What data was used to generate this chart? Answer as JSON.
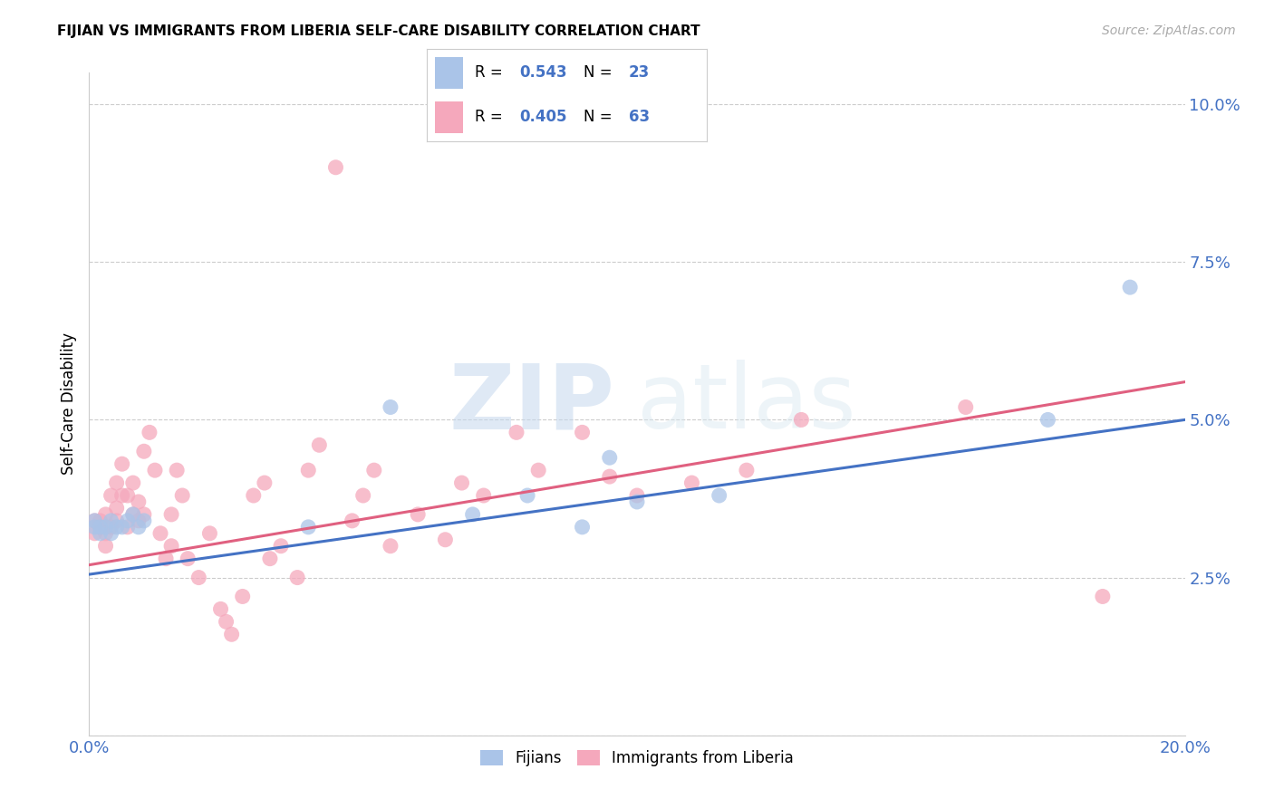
{
  "title": "FIJIAN VS IMMIGRANTS FROM LIBERIA SELF-CARE DISABILITY CORRELATION CHART",
  "source": "Source: ZipAtlas.com",
  "ylabel_label": "Self-Care Disability",
  "xlim": [
    0.0,
    0.2
  ],
  "ylim": [
    0.0,
    0.105
  ],
  "xticks": [
    0.0,
    0.05,
    0.1,
    0.15,
    0.2
  ],
  "yticks": [
    0.0,
    0.025,
    0.05,
    0.075,
    0.1
  ],
  "ytick_labels": [
    "",
    "2.5%",
    "5.0%",
    "7.5%",
    "10.0%"
  ],
  "xtick_labels": [
    "0.0%",
    "",
    "",
    "",
    "20.0%"
  ],
  "watermark_zip": "ZIP",
  "watermark_atlas": "atlas",
  "fijian_R": "0.543",
  "fijian_N": "23",
  "liberia_R": "0.405",
  "liberia_N": "63",
  "fijian_color": "#aac4e8",
  "liberia_color": "#f5a8bc",
  "fijian_line_color": "#4472c4",
  "liberia_line_color": "#e06080",
  "legend_label_1": "Fijians",
  "legend_label_2": "Immigrants from Liberia",
  "fijian_x": [
    0.001,
    0.001,
    0.002,
    0.002,
    0.003,
    0.004,
    0.004,
    0.005,
    0.006,
    0.007,
    0.008,
    0.009,
    0.01,
    0.04,
    0.055,
    0.07,
    0.08,
    0.09,
    0.095,
    0.1,
    0.115,
    0.175,
    0.19
  ],
  "fijian_y": [
    0.033,
    0.034,
    0.032,
    0.033,
    0.033,
    0.032,
    0.034,
    0.033,
    0.033,
    0.034,
    0.035,
    0.033,
    0.034,
    0.033,
    0.052,
    0.035,
    0.038,
    0.033,
    0.044,
    0.037,
    0.038,
    0.05,
    0.071
  ],
  "liberia_x": [
    0.001,
    0.001,
    0.002,
    0.002,
    0.003,
    0.003,
    0.003,
    0.004,
    0.004,
    0.005,
    0.005,
    0.005,
    0.006,
    0.006,
    0.007,
    0.007,
    0.008,
    0.008,
    0.009,
    0.009,
    0.01,
    0.01,
    0.011,
    0.012,
    0.013,
    0.014,
    0.015,
    0.015,
    0.016,
    0.017,
    0.018,
    0.02,
    0.022,
    0.024,
    0.025,
    0.026,
    0.028,
    0.03,
    0.032,
    0.033,
    0.035,
    0.038,
    0.04,
    0.042,
    0.045,
    0.048,
    0.05,
    0.052,
    0.055,
    0.06,
    0.065,
    0.068,
    0.072,
    0.078,
    0.082,
    0.09,
    0.095,
    0.1,
    0.11,
    0.12,
    0.13,
    0.16,
    0.185
  ],
  "liberia_y": [
    0.034,
    0.032,
    0.033,
    0.034,
    0.03,
    0.032,
    0.035,
    0.033,
    0.038,
    0.034,
    0.036,
    0.04,
    0.038,
    0.043,
    0.033,
    0.038,
    0.035,
    0.04,
    0.034,
    0.037,
    0.045,
    0.035,
    0.048,
    0.042,
    0.032,
    0.028,
    0.035,
    0.03,
    0.042,
    0.038,
    0.028,
    0.025,
    0.032,
    0.02,
    0.018,
    0.016,
    0.022,
    0.038,
    0.04,
    0.028,
    0.03,
    0.025,
    0.042,
    0.046,
    0.09,
    0.034,
    0.038,
    0.042,
    0.03,
    0.035,
    0.031,
    0.04,
    0.038,
    0.048,
    0.042,
    0.048,
    0.041,
    0.038,
    0.04,
    0.042,
    0.05,
    0.052,
    0.022
  ],
  "line_fijian_x0": 0.0,
  "line_fijian_y0": 0.0255,
  "line_fijian_x1": 0.2,
  "line_fijian_y1": 0.05,
  "line_liberia_x0": 0.0,
  "line_liberia_y0": 0.027,
  "line_liberia_x1": 0.2,
  "line_liberia_y1": 0.056
}
